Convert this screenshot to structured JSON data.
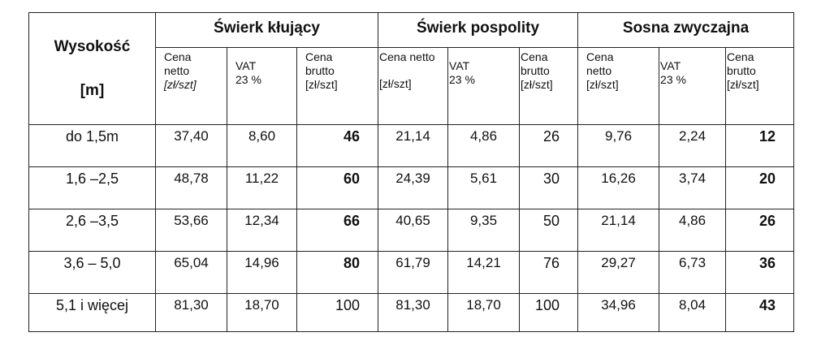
{
  "table": {
    "height_header_line1": "Wysokość",
    "height_header_line2": "[m]",
    "species": [
      {
        "name": "Świerk kłujący",
        "netto_label": [
          "Cena",
          "netto",
          "[zł/szt]"
        ],
        "vat_label": [
          "VAT",
          "23 %"
        ],
        "brutto_label": [
          "Cena",
          "brutto",
          "[zł/szt]"
        ]
      },
      {
        "name": "Świerk pospolity",
        "netto_label": [
          "Cena netto",
          "",
          "[zł/szt]"
        ],
        "vat_label": [
          "VAT",
          "23 %"
        ],
        "brutto_label": [
          "Cena",
          "brutto",
          "[zł/szt]"
        ]
      },
      {
        "name": "Sosna zwyczajna",
        "netto_label": [
          "Cena",
          "netto",
          "[zł/szt]"
        ],
        "vat_label": [
          "VAT",
          "23 %"
        ],
        "brutto_label": [
          "Cena",
          "brutto",
          "[zł/szt]"
        ]
      }
    ],
    "rows": [
      {
        "height": "do 1,5m",
        "values": [
          [
            "37,40",
            "8,60",
            "46"
          ],
          [
            "21,14",
            "4,86",
            "26"
          ],
          [
            "9,76",
            "2,24",
            "12"
          ]
        ]
      },
      {
        "height": "1,6 –2,5",
        "values": [
          [
            "48,78",
            "11,22",
            "60"
          ],
          [
            "24,39",
            "5,61",
            "30"
          ],
          [
            "16,26",
            "3,74",
            "20"
          ]
        ]
      },
      {
        "height": "2,6 –3,5",
        "values": [
          [
            "53,66",
            "12,34",
            "66"
          ],
          [
            "40,65",
            "9,35",
            "50"
          ],
          [
            "21,14",
            "4,86",
            "26"
          ]
        ]
      },
      {
        "height": "3,6 – 5,0",
        "values": [
          [
            "65,04",
            "14,96",
            "80"
          ],
          [
            "61,79",
            "14,21",
            "76"
          ],
          [
            "29,27",
            "6,73",
            "36"
          ]
        ]
      },
      {
        "height": "5,1 i więcej",
        "values": [
          [
            "81,30",
            "18,70",
            "100"
          ],
          [
            "81,30",
            "18,70",
            "100"
          ],
          [
            "34,96",
            "8,04",
            "43"
          ]
        ]
      }
    ]
  }
}
